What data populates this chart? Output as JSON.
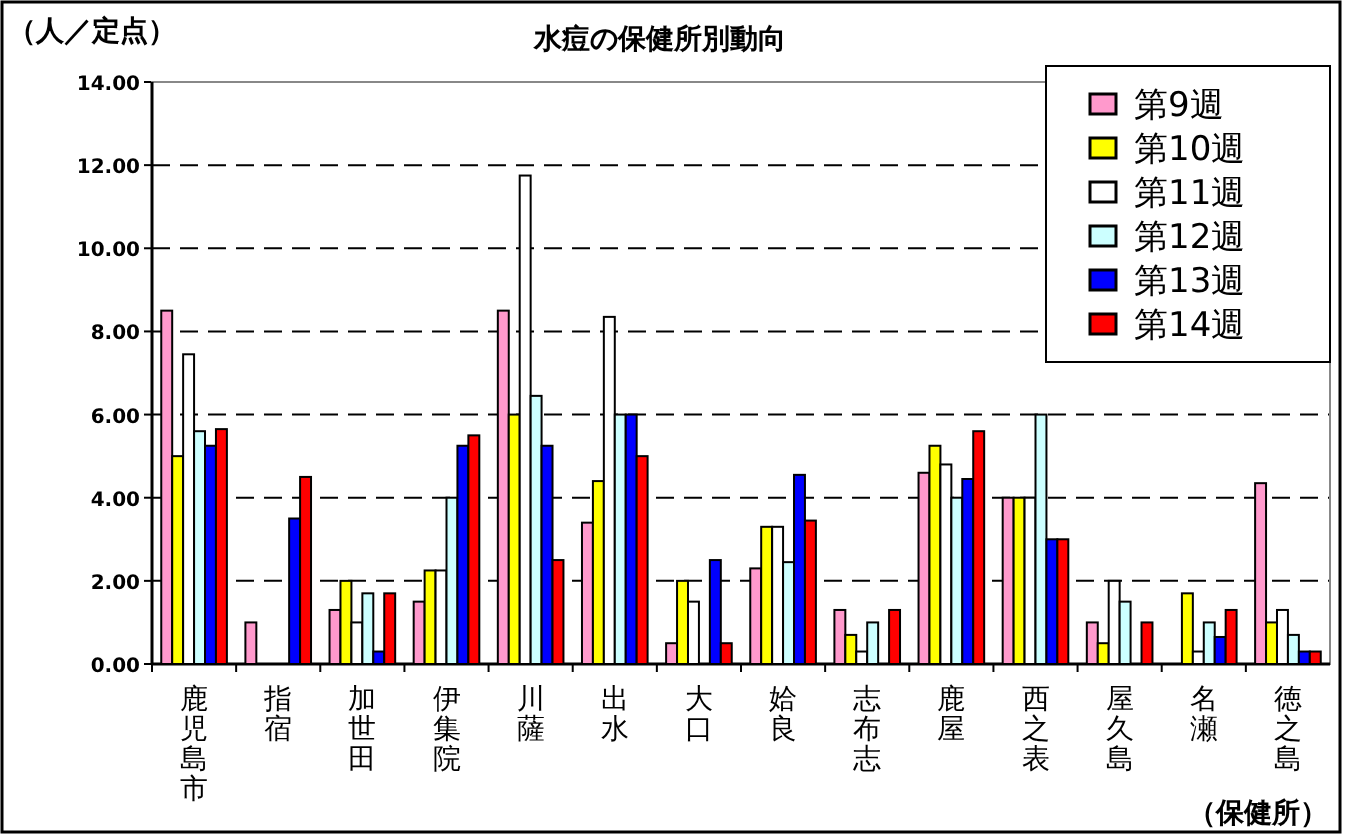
{
  "chart_data": {
    "type": "bar",
    "title": "水痘の保健所別動向",
    "ylabel": "（人／定点）",
    "annotations": [
      "（保健所）"
    ],
    "categories": [
      "鹿児島市",
      "指宿",
      "加世田",
      "伊集院",
      "川薩",
      "出水",
      "大口",
      "姶良",
      "志布志",
      "鹿屋",
      "西之表",
      "屋久島",
      "名瀬",
      "徳之島"
    ],
    "series": [
      {
        "name": "第9週",
        "color": "#ff99cc",
        "values": [
          8.5,
          1.0,
          1.3,
          1.5,
          8.5,
          3.4,
          0.5,
          2.3,
          1.3,
          4.6,
          4.0,
          1.0,
          0,
          4.35
        ]
      },
      {
        "name": "第10週",
        "color": "#ffff00",
        "values": [
          5.0,
          0,
          2.0,
          2.25,
          6.0,
          4.4,
          2.0,
          3.3,
          0.7,
          5.25,
          4.0,
          0.5,
          1.7,
          1.0
        ]
      },
      {
        "name": "第11週",
        "color": "#ffffff",
        "values": [
          7.45,
          0,
          1.0,
          2.25,
          11.75,
          8.35,
          1.5,
          3.3,
          0.3,
          4.8,
          4.0,
          2.0,
          0.3,
          1.3
        ]
      },
      {
        "name": "第12週",
        "color": "#ccffff",
        "values": [
          5.6,
          0,
          1.7,
          4.0,
          6.45,
          6.0,
          0,
          2.45,
          1.0,
          4.0,
          6.0,
          1.5,
          1.0,
          0.7
        ]
      },
      {
        "name": "第13週",
        "color": "#0000ff",
        "values": [
          5.25,
          3.5,
          0.3,
          5.25,
          5.25,
          6.0,
          2.5,
          4.55,
          0,
          4.45,
          3.0,
          0,
          0.65,
          0.3
        ]
      },
      {
        "name": "第14週",
        "color": "#ff0000",
        "values": [
          5.65,
          4.5,
          1.7,
          5.5,
          2.5,
          5.0,
          0.5,
          3.45,
          1.3,
          5.6,
          3.0,
          1.0,
          1.3,
          0.3
        ]
      }
    ],
    "ylim": [
      0,
      14
    ],
    "yticks": [
      {
        "value": 0,
        "label": "0.00"
      },
      {
        "value": 2,
        "label": "2.00"
      },
      {
        "value": 4,
        "label": "4.00"
      },
      {
        "value": 6,
        "label": "6.00"
      },
      {
        "value": 8,
        "label": "8.00"
      },
      {
        "value": 10,
        "label": "10.00"
      },
      {
        "value": 12,
        "label": "12.00"
      },
      {
        "value": 14,
        "label": "14.00"
      }
    ],
    "grid": "y",
    "legend": "top right"
  }
}
